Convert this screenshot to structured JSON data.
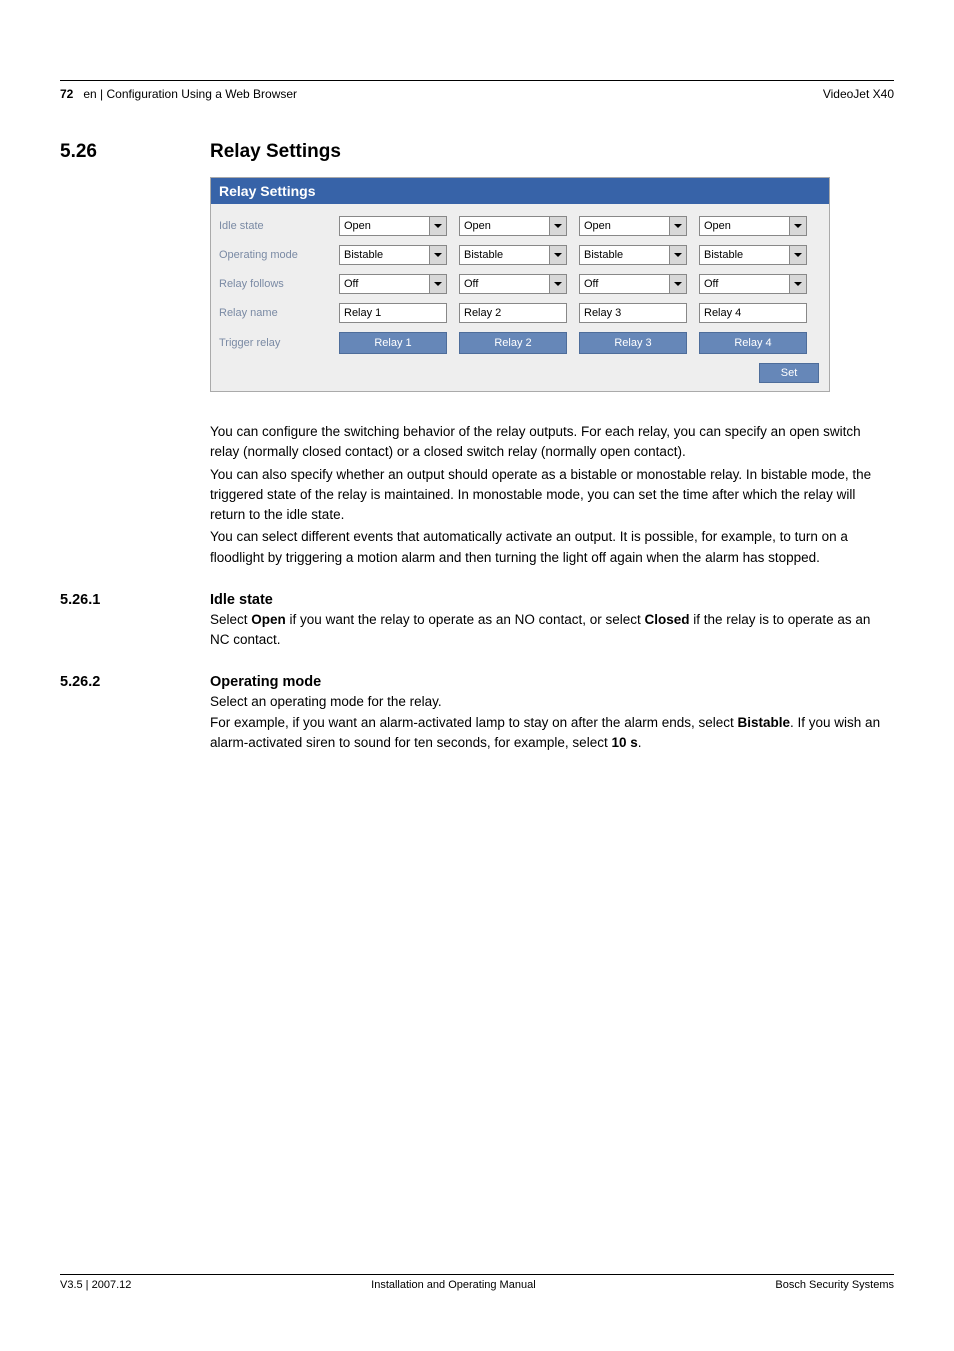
{
  "header": {
    "page_num": "72",
    "breadcrumb": "en | Configuration Using a Web Browser",
    "product": "VideoJet X40"
  },
  "section": {
    "number": "5.26",
    "title": "Relay Settings"
  },
  "panel": {
    "title": "Relay Settings",
    "rows": {
      "idle_state": {
        "label": "Idle state",
        "values": [
          "Open",
          "Open",
          "Open",
          "Open"
        ]
      },
      "operating_mode": {
        "label": "Operating mode",
        "values": [
          "Bistable",
          "Bistable",
          "Bistable",
          "Bistable"
        ]
      },
      "relay_follows": {
        "label": "Relay follows",
        "values": [
          "Off",
          "Off",
          "Off",
          "Off"
        ]
      },
      "relay_name": {
        "label": "Relay name",
        "values": [
          "Relay 1",
          "Relay 2",
          "Relay 3",
          "Relay 4"
        ]
      },
      "trigger_relay": {
        "label": "Trigger relay",
        "values": [
          "Relay 1",
          "Relay 2",
          "Relay 3",
          "Relay 4"
        ]
      }
    },
    "set_label": "Set"
  },
  "body": {
    "p1": "You can configure the switching behavior of the relay outputs. For each relay, you can specify an open switch relay (normally closed contact) or a closed switch relay (normally open contact).",
    "p2": "You can also specify whether an output should operate as a bistable or monostable relay. In bistable mode, the triggered state of the relay is maintained. In monostable mode, you can set the time after which the relay will return to the idle state.",
    "p3": "You can select different events that automatically activate an output. It is possible, for example, to turn on a floodlight by triggering a motion alarm and then turning the light off again when the alarm has stopped."
  },
  "sub1": {
    "number": "5.26.1",
    "title": "Idle state",
    "text_pre": "Select ",
    "bold1": "Open",
    "text_mid": " if you want the relay to operate as an NO contact, or select ",
    "bold2": "Closed",
    "text_post": " if the relay is to operate as an NC contact."
  },
  "sub2": {
    "number": "5.26.2",
    "title": "Operating mode",
    "line1": "Select an operating mode for the relay.",
    "line2_pre": "For example, if you want an alarm-activated lamp to stay on after the alarm ends, select ",
    "line2_bold": "Bistable",
    "line2_mid": ". If you wish an alarm-activated siren to sound for ten seconds, for example, select ",
    "line2_bold2": "10 s",
    "line2_post": "."
  },
  "footer": {
    "left": "V3.5 | 2007.12",
    "center": "Installation and Operating Manual",
    "right": "Bosch Security Systems"
  },
  "colors": {
    "panel_header_bg": "#3763a8",
    "panel_bg": "#eeeeee",
    "label_color": "#7a8aa4",
    "button_bg": "#6687b8"
  }
}
